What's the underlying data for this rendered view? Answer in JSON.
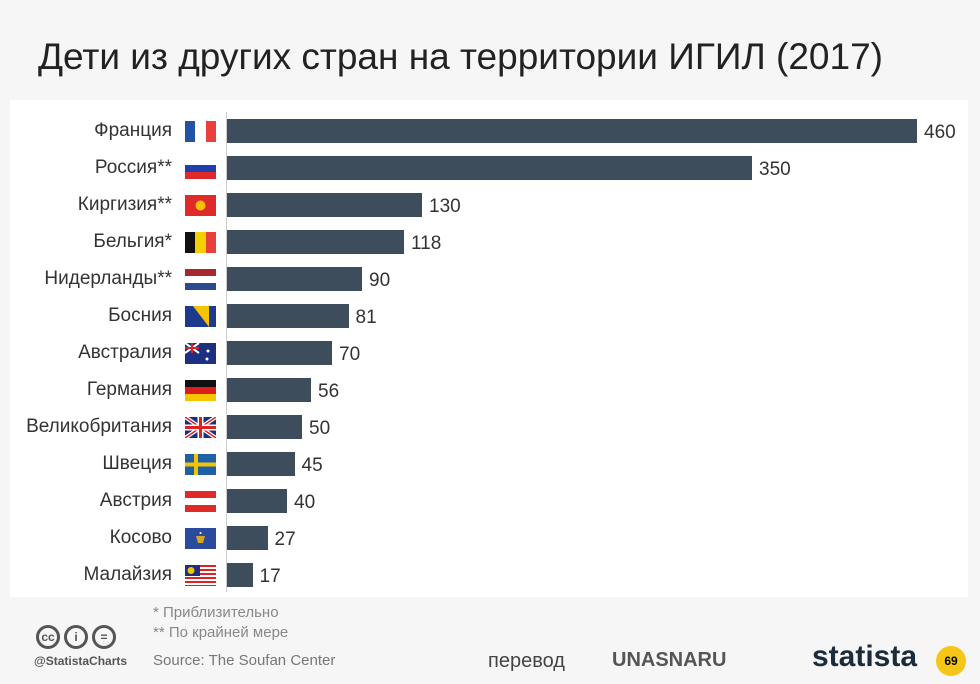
{
  "chart_data": {
    "type": "bar",
    "orientation": "horizontal",
    "title": "Дети из других стран на территории ИГИЛ (2017)",
    "categories": [
      "Франция",
      "Россия**",
      "Киргизия**",
      "Бельгия*",
      "Нидерланды**",
      "Босния",
      "Австралия",
      "Германия",
      "Великобритания",
      "Швеция",
      "Австрия",
      "Косово",
      "Малайзия"
    ],
    "values": [
      460,
      350,
      130,
      118,
      90,
      81,
      70,
      56,
      50,
      45,
      40,
      27,
      17
    ],
    "xlim": [
      0,
      460
    ],
    "bar_color": "#3e4d5c",
    "grid": false,
    "flags": [
      "france",
      "russia",
      "kyrgyzstan",
      "belgium",
      "netherlands",
      "bosnia",
      "australia",
      "germany",
      "uk",
      "sweden",
      "austria",
      "kosovo",
      "malaysia"
    ]
  },
  "footer": {
    "note1": "*  Приблизительно",
    "note2": "** По крайней мере",
    "cc": [
      "cc",
      "i",
      "="
    ],
    "handle": "@StatistaCharts",
    "source": "Source: The Soufan Center",
    "translation": "перевод",
    "translator": "UNASNARU",
    "logo": "statista",
    "badge": "69"
  }
}
